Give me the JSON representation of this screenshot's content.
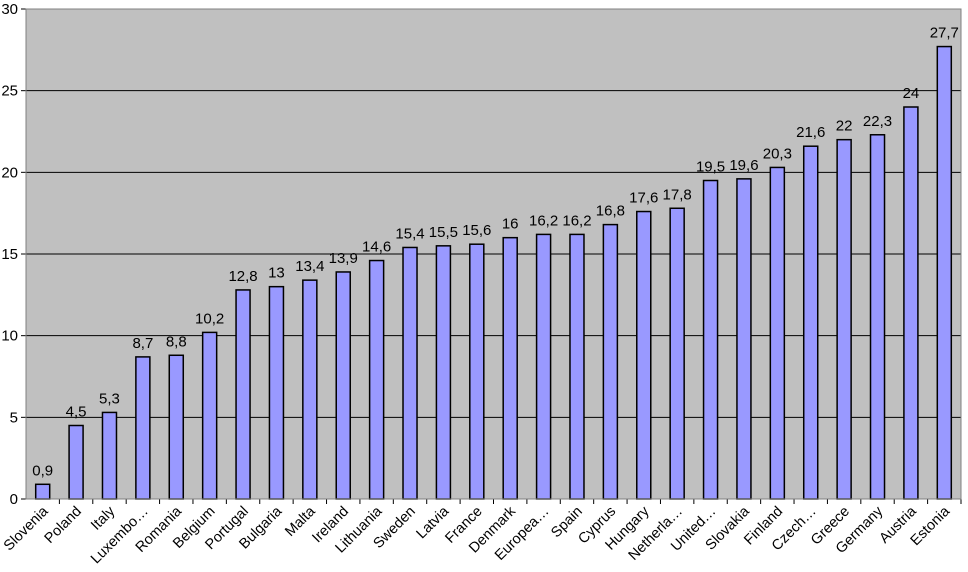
{
  "chart_data": {
    "type": "bar",
    "categories": [
      "Slovenia",
      "Poland",
      "Italy",
      "Luxembo…",
      "Romania",
      "Belgium",
      "Portugal",
      "Bulgaria",
      "Malta",
      "Ireland",
      "Lithuania",
      "Sweden",
      "Latvia",
      "France",
      "Denmark",
      "Europea…",
      "Spain",
      "Cyprus",
      "Hungary",
      "Netherla…",
      "United…",
      "Slovakia",
      "Finland",
      "Czech…",
      "Greece",
      "Germany",
      "Austria",
      "Estonia"
    ],
    "values": [
      0.9,
      4.5,
      5.3,
      8.7,
      8.8,
      10.2,
      12.8,
      13,
      13.4,
      13.9,
      14.6,
      15.4,
      15.5,
      15.6,
      16,
      16.2,
      16.2,
      16.8,
      17.6,
      17.8,
      19.5,
      19.6,
      20.3,
      21.6,
      22,
      22.3,
      24,
      27.7
    ],
    "value_labels": [
      "0,9",
      "4,5",
      "5,3",
      "8,7",
      "8,8",
      "10,2",
      "12,8",
      "13",
      "13,4",
      "13,9",
      "14,6",
      "15,4",
      "15,5",
      "15,6",
      "16",
      "16,2",
      "16,2",
      "16,8",
      "17,6",
      "17,8",
      "19,5",
      "19,6",
      "20,3",
      "21,6",
      "22",
      "22,3",
      "24",
      "27,7"
    ],
    "yticks": [
      "0",
      "5",
      "10",
      "15",
      "20",
      "25",
      "30"
    ],
    "ylim": [
      0,
      30
    ],
    "grid": true,
    "legend": "none",
    "title": "",
    "xlabel": "",
    "ylabel": "",
    "colors": {
      "bar_fill": "#9999ff",
      "bar_stroke": "#000000",
      "plot_bg": "#c0c0c0",
      "grid": "#000000"
    }
  }
}
